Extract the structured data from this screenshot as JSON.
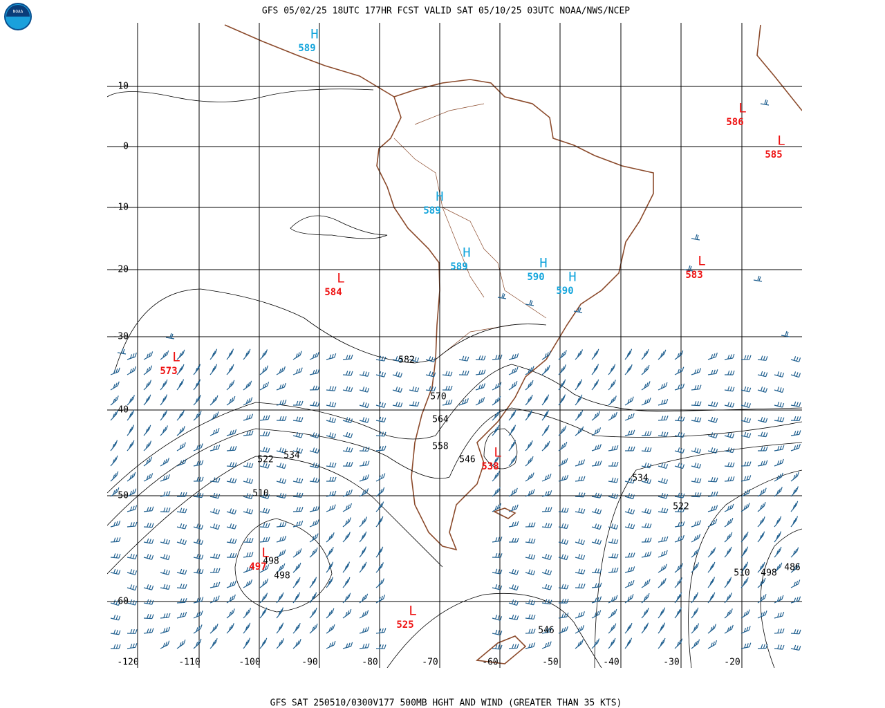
{
  "header": {
    "title": "GFS 05/02/25 18UTC 177HR FCST VALID SAT 05/10/25 03UTC NOAA/NWS/NCEP",
    "logo": "NOAA"
  },
  "footer": {
    "caption": "GFS SAT 250510/0300V177 500MB HGHT AND WIND (GREATER THAN 35 KTS)"
  },
  "lon_ticks": [
    -120,
    -110,
    -100,
    -90,
    -80,
    -70,
    -60,
    -50,
    -40,
    -30,
    -20
  ],
  "lat_ticks": [
    10,
    0,
    -10,
    -20,
    -30,
    -40,
    -50,
    -60
  ],
  "centers": [
    {
      "type": "H",
      "value": 589
    },
    {
      "type": "H",
      "value": 589
    },
    {
      "type": "H",
      "value": 589
    },
    {
      "type": "H",
      "value": 590
    },
    {
      "type": "H",
      "value": 590
    },
    {
      "type": "L",
      "value": 586
    },
    {
      "type": "L",
      "value": 585
    },
    {
      "type": "L",
      "value": 583
    },
    {
      "type": "L",
      "value": 584
    },
    {
      "type": "L",
      "value": 573
    },
    {
      "type": "L",
      "value": 538
    },
    {
      "type": "L",
      "value": 497
    },
    {
      "type": "L",
      "value": 525
    }
  ],
  "contour_labels": [
    582,
    570,
    564,
    558,
    546,
    534,
    522,
    510,
    498,
    498,
    534,
    522,
    510,
    498,
    486,
    546
  ]
}
